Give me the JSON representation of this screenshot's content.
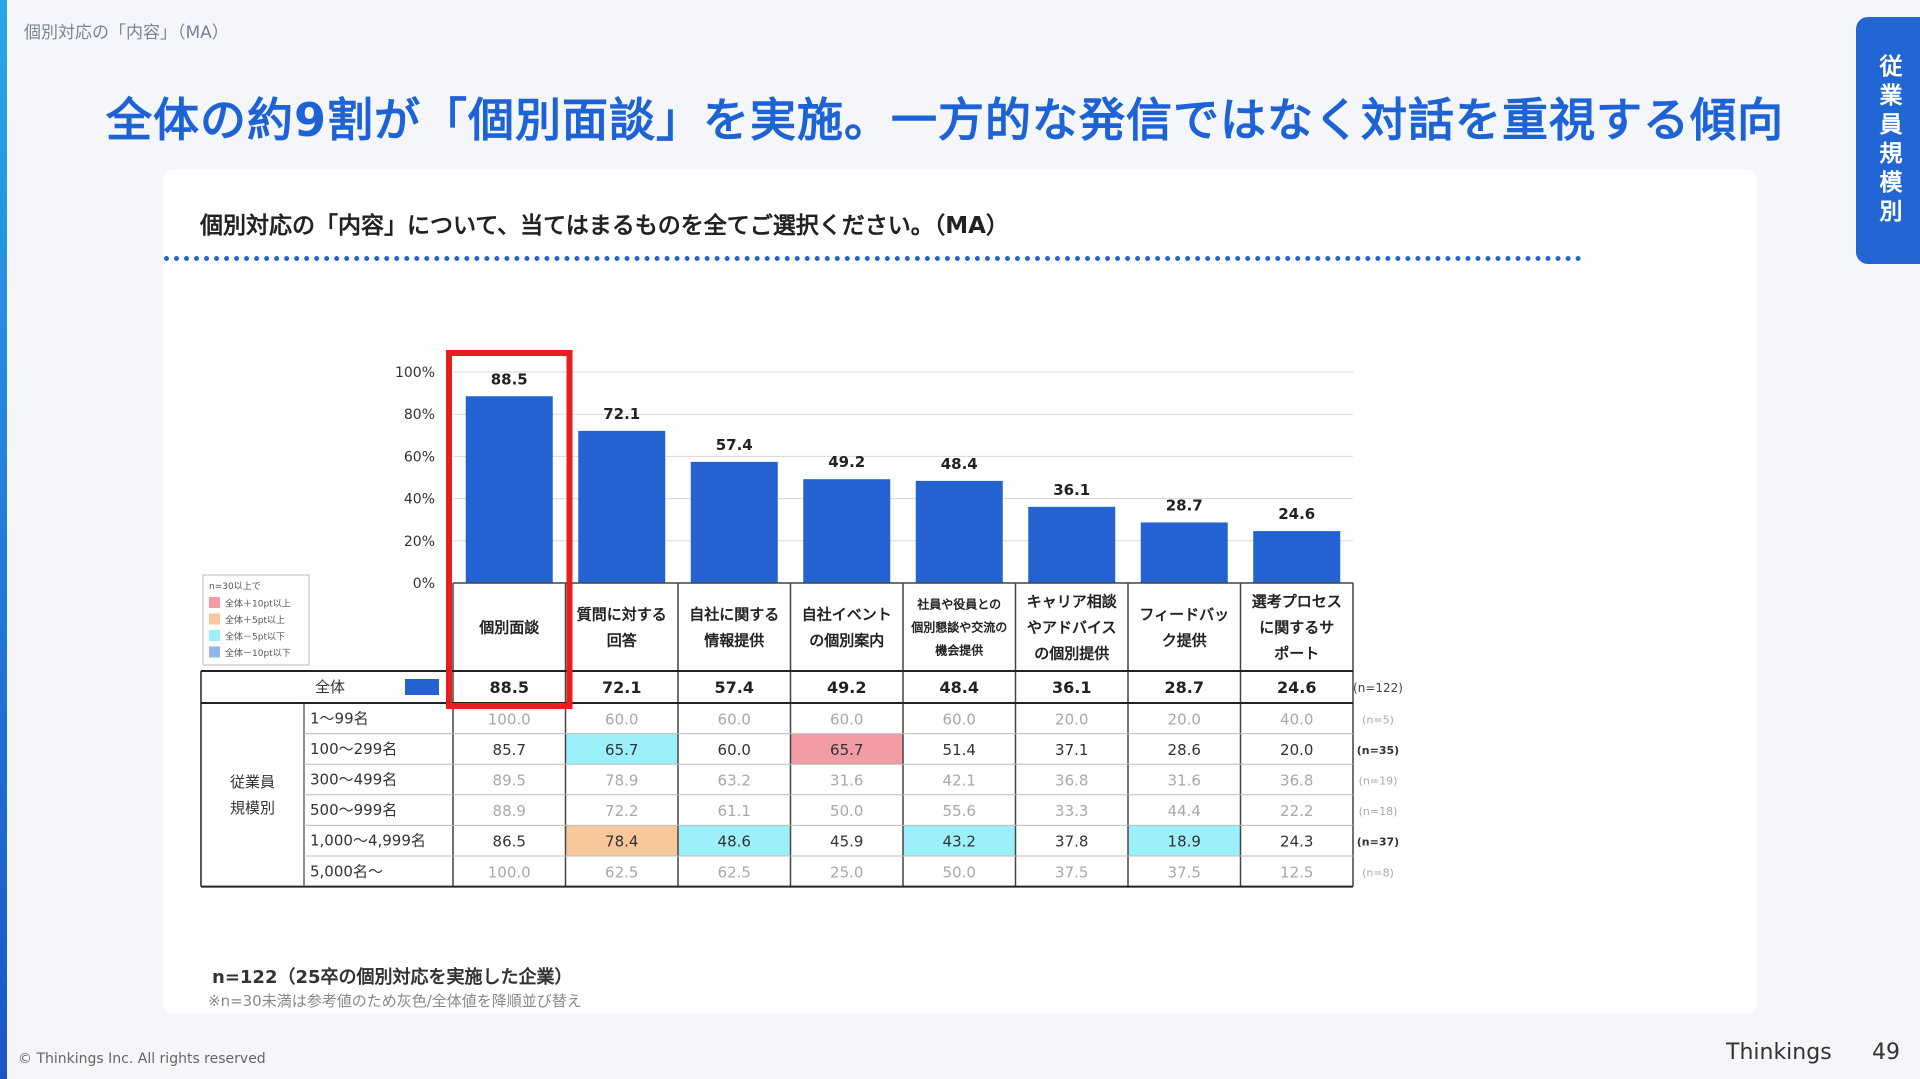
{
  "header": {
    "breadcrumb": "個別対応の「内容」（MA）",
    "title": "全体の約9割が「個別面談」を実施。一方的な発信ではなく対話を重視する傾向",
    "side_tab": "従業員規模別"
  },
  "question": "個別対応の「内容」について、当てはまるものを全てご選択ください。（MA）",
  "legend": {
    "title": "n=30以上で",
    "items": [
      {
        "label": "全体＋10pt以上",
        "color": "#f29ca3"
      },
      {
        "label": "全体＋5pt以上",
        "color": "#f9c89a"
      },
      {
        "label": "全体－5pt以下",
        "color": "#9bf0fa"
      },
      {
        "label": "全体－10pt以下",
        "color": "#8fb6ec"
      }
    ]
  },
  "chart_data": {
    "type": "bar",
    "categories": [
      [
        "個別面談"
      ],
      [
        "質問に対する",
        "回答"
      ],
      [
        "自社に関する",
        "情報提供"
      ],
      [
        "自社イベント",
        "の個別案内"
      ],
      [
        "社員や役員との",
        "個別懇談や交流の",
        "機会提供"
      ],
      [
        "キャリア相談",
        "やアドバイス",
        "の個別提供"
      ],
      [
        "フィードバッ",
        "ク提供"
      ],
      [
        "選考プロセス",
        "に関するサ",
        "ポート"
      ]
    ],
    "values": [
      88.5,
      72.1,
      57.4,
      49.2,
      48.4,
      36.1,
      28.7,
      24.6
    ],
    "yticks": [
      "0%",
      "20%",
      "40%",
      "60%",
      "80%",
      "100%"
    ],
    "ylim": [
      0,
      100
    ],
    "bar_color": "#2462d2",
    "highlight_index": 0,
    "highlight_color": "#e61e1e"
  },
  "table": {
    "total": {
      "label": "全体",
      "values": [
        "88.5",
        "72.1",
        "57.4",
        "49.2",
        "48.4",
        "36.1",
        "28.7",
        "24.6"
      ],
      "n": "(n=122)"
    },
    "group_label": [
      "従業員",
      "規模別"
    ],
    "rows": [
      {
        "label": "1〜99名",
        "values": [
          "100.0",
          "60.0",
          "60.0",
          "60.0",
          "60.0",
          "20.0",
          "20.0",
          "40.0"
        ],
        "n": "(n=5)",
        "gray": true,
        "colors": [
          "",
          "",
          "",
          "",
          "",
          "",
          "",
          ""
        ]
      },
      {
        "label": "100〜299名",
        "values": [
          "85.7",
          "65.7",
          "60.0",
          "65.7",
          "51.4",
          "37.1",
          "28.6",
          "20.0"
        ],
        "n": "(n=35)",
        "gray": false,
        "colors": [
          "",
          "#9bf0fa",
          "",
          "#f29ca3",
          "",
          "",
          "",
          ""
        ]
      },
      {
        "label": "300〜499名",
        "values": [
          "89.5",
          "78.9",
          "63.2",
          "31.6",
          "42.1",
          "36.8",
          "31.6",
          "36.8"
        ],
        "n": "(n=19)",
        "gray": true,
        "colors": [
          "",
          "",
          "",
          "",
          "",
          "",
          "",
          ""
        ]
      },
      {
        "label": "500〜999名",
        "values": [
          "88.9",
          "72.2",
          "61.1",
          "50.0",
          "55.6",
          "33.3",
          "44.4",
          "22.2"
        ],
        "n": "(n=18)",
        "gray": true,
        "colors": [
          "",
          "",
          "",
          "",
          "",
          "",
          "",
          ""
        ]
      },
      {
        "label": "1,000〜4,999名",
        "values": [
          "86.5",
          "78.4",
          "48.6",
          "45.9",
          "43.2",
          "37.8",
          "18.9",
          "24.3"
        ],
        "n": "(n=37)",
        "gray": false,
        "colors": [
          "",
          "#f9c89a",
          "#9bf0fa",
          "",
          "#9bf0fa",
          "",
          "#9bf0fa",
          ""
        ]
      },
      {
        "label": "5,000名〜",
        "values": [
          "100.0",
          "62.5",
          "62.5",
          "25.0",
          "50.0",
          "37.5",
          "37.5",
          "12.5"
        ],
        "n": "(n=8)",
        "gray": true,
        "colors": [
          "",
          "",
          "",
          "",
          "",
          "",
          "",
          ""
        ]
      }
    ]
  },
  "footer": {
    "n_label": "n=122（25卒の個別対応を実施した企業）",
    "note": "※n=30未満は参考値のため灰色/全体値を降順並び替え",
    "copyright": "© Thinkings Inc. All rights reserved",
    "brand": "Thinkings",
    "page_number": "49"
  }
}
